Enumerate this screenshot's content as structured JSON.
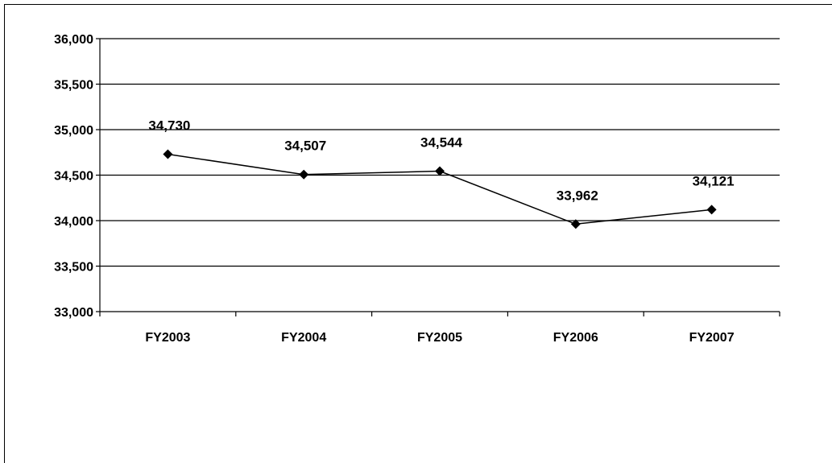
{
  "chart_data": {
    "type": "line",
    "categories": [
      "FY2003",
      "FY2004",
      "FY2005",
      "FY2006",
      "FY2007"
    ],
    "values": [
      34730,
      34507,
      34544,
      33962,
      34121
    ],
    "data_labels": [
      "34,730",
      "34,507",
      "34,544",
      "33,962",
      "34,121"
    ],
    "y_ticks": [
      33000,
      33500,
      34000,
      34500,
      35000,
      35500,
      36000
    ],
    "y_tick_labels": [
      "33,000",
      "33,500",
      "34,000",
      "34,500",
      "35,000",
      "35,500",
      "36,000"
    ],
    "ylim": [
      33000,
      36000
    ],
    "grid": "horizontal",
    "marker": "diamond",
    "line_color": "#000000",
    "title": "",
    "xlabel": "",
    "ylabel": ""
  }
}
